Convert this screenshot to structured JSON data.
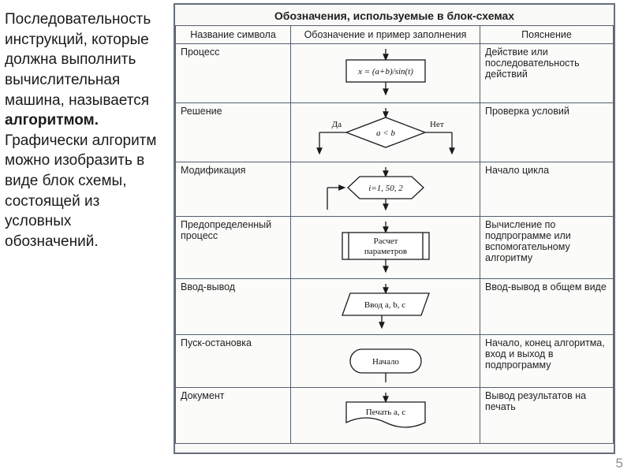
{
  "left_paragraph": {
    "line1": "Последовательность инструкций, которые должна выполнить вычислительная машина, называется ",
    "bold": "алгоритмом.",
    "line2": " Графически алгоритм можно изобразить в виде блок схемы, состоящей из условных обозначений."
  },
  "table": {
    "caption": "Обозначения, используемые в блок-схемах",
    "headers": [
      "Название символа",
      "Обозначение и пример заполнения",
      "Пояснение"
    ],
    "rows": [
      {
        "name": "Процесс",
        "explanation": "Действие или последовательность действий",
        "symbol": {
          "type": "process",
          "text": "x = (a+b)/sin(t)"
        }
      },
      {
        "name": "Решение",
        "explanation": "Проверка условий",
        "symbol": {
          "type": "decision",
          "text": "a < b",
          "yes": "Да",
          "no": "Нет"
        }
      },
      {
        "name": "Модификация",
        "explanation": "Начало цикла",
        "symbol": {
          "type": "loop",
          "text": "i=1, 50, 2"
        }
      },
      {
        "name": "Предопределенный процесс",
        "explanation": "Вычисление по подпрограмме или вспомогательному алгоритму",
        "symbol": {
          "type": "predefined",
          "text1": "Расчет",
          "text2": "параметров"
        }
      },
      {
        "name": "Ввод-вывод",
        "explanation": "Ввод-вывод в общем виде",
        "symbol": {
          "type": "io",
          "text": "Ввод a, b, c"
        }
      },
      {
        "name": "Пуск-остановка",
        "explanation": "Начало, конец алгоритма, вход и выход в подпрограмму",
        "symbol": {
          "type": "terminal",
          "text": "Начало"
        }
      },
      {
        "name": "Документ",
        "explanation": "Вывод результатов на печать",
        "symbol": {
          "type": "document",
          "text": "Печать a, c"
        }
      }
    ]
  },
  "page_number": "5",
  "style": {
    "stroke": "#1a1a1a",
    "stroke_width": 1.3,
    "fill": "#ffffff"
  }
}
